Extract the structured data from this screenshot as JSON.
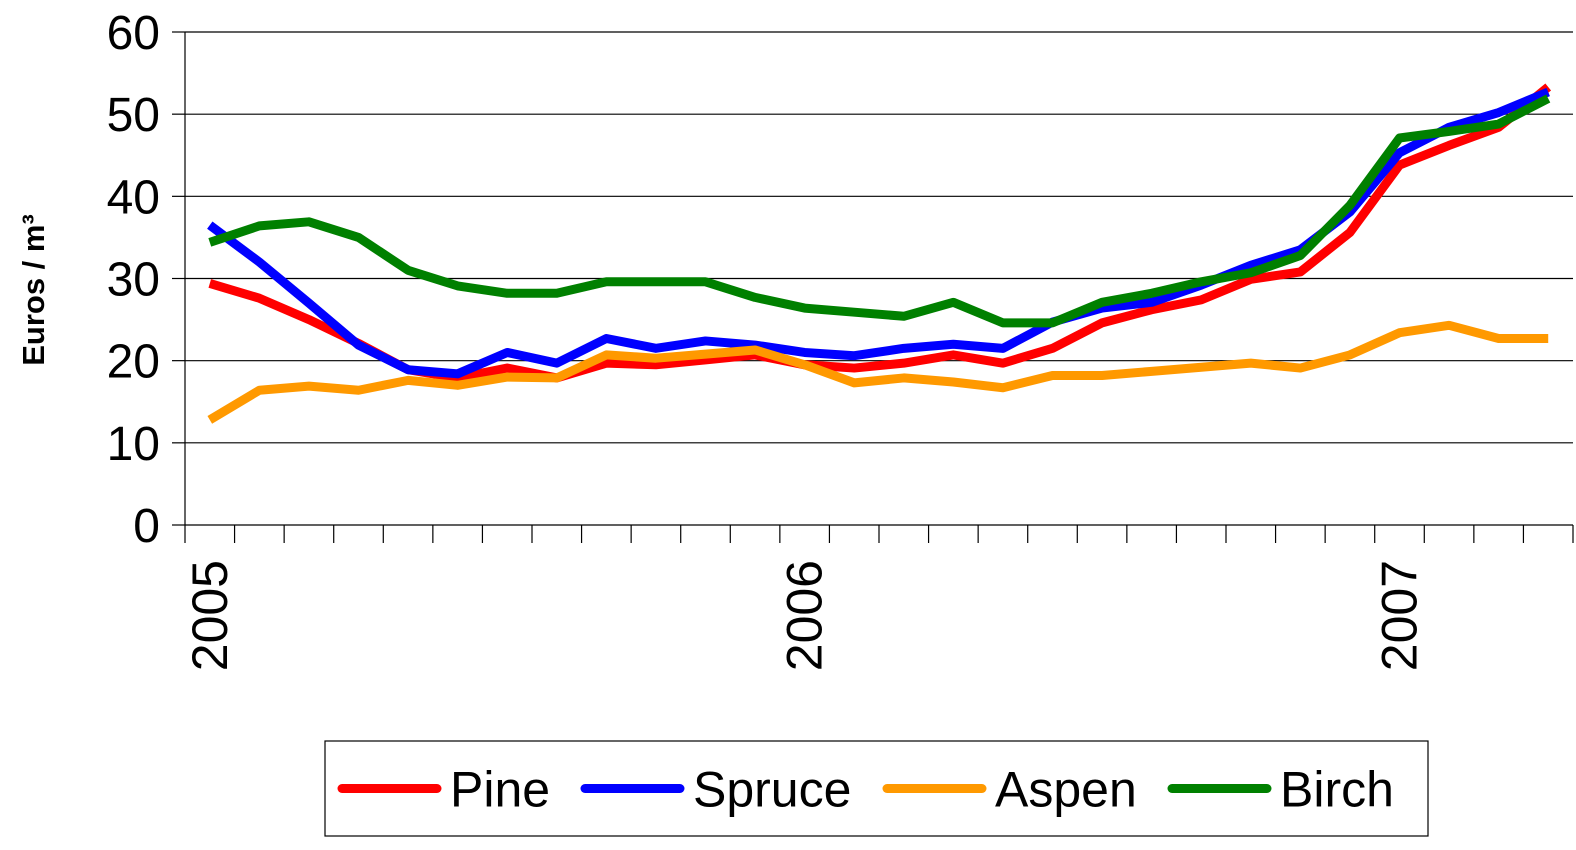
{
  "chart_data": {
    "type": "line",
    "y_label": "Euros / m³",
    "categories": [
      "2005",
      null,
      null,
      null,
      null,
      null,
      null,
      null,
      null,
      null,
      null,
      null,
      "2006",
      null,
      null,
      null,
      null,
      null,
      null,
      null,
      null,
      null,
      null,
      null,
      "2007",
      null,
      null,
      null
    ],
    "series": [
      {
        "name": "Pine",
        "color": "#ff0000",
        "values": [
          29.4,
          27.6,
          25,
          22.1,
          18.9,
          17.9,
          19.1,
          17.9,
          19.7,
          19.5,
          20.1,
          20.7,
          19.5,
          19.1,
          19.7,
          20.7,
          19.7,
          21.5,
          24.6,
          26.2,
          27.4,
          29.9,
          30.8,
          35.6,
          43.8,
          46.2,
          48.4,
          53.3
        ]
      },
      {
        "name": "Spruce",
        "color": "#0000ff",
        "values": [
          36.5,
          32,
          27,
          21.9,
          18.9,
          18.4,
          21,
          19.7,
          22.7,
          21.5,
          22.4,
          21.9,
          21,
          20.6,
          21.5,
          22,
          21.5,
          24.7,
          26.4,
          27.1,
          29.2,
          31.6,
          33.5,
          38.1,
          45.3,
          48.4,
          50.2,
          52.7
        ]
      },
      {
        "name": "Aspen",
        "color": "#ff9900",
        "values": [
          12.8,
          16.4,
          16.9,
          16.4,
          17.6,
          17,
          18,
          17.9,
          20.7,
          20.3,
          20.8,
          21.3,
          19.5,
          17.3,
          17.9,
          17.4,
          16.7,
          18.2,
          18.2,
          18.7,
          19.2,
          19.7,
          19.1,
          20.7,
          23.4,
          24.3,
          22.7,
          22.7
        ]
      },
      {
        "name": "Birch",
        "color": "#008000",
        "values": [
          34.4,
          36.4,
          36.9,
          35,
          31,
          29.1,
          28.2,
          28.2,
          29.6,
          29.6,
          29.6,
          27.7,
          26.4,
          25.9,
          25.4,
          27.1,
          24.6,
          24.6,
          27.1,
          28.2,
          29.6,
          30.7,
          32.8,
          38.9,
          47.1,
          47.9,
          48.8,
          51.9
        ]
      }
    ],
    "ylim": [
      0,
      60
    ],
    "yticks": [
      0,
      10,
      20,
      30,
      40,
      50,
      60
    ],
    "grid": true,
    "legend": "bottom"
  }
}
